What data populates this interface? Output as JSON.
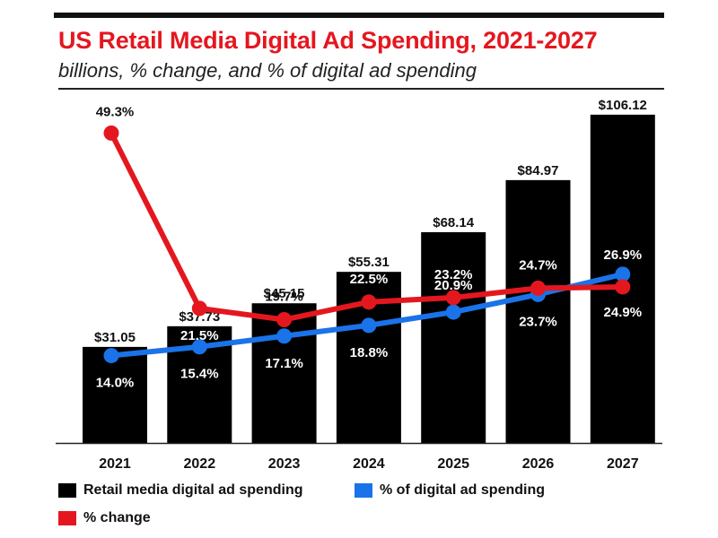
{
  "title": "US Retail Media Digital Ad Spending, 2021-2027",
  "subtitle": "billions, % change, and % of digital ad spending",
  "colors": {
    "bar": "#000000",
    "pct_change": "#e4171f",
    "pct_digital": "#1a73e8",
    "title": "#e4171f"
  },
  "legend": {
    "bar_label": "Retail media digital ad spending",
    "pct_digital_label": "% of digital ad spending",
    "pct_change_label": "% change"
  },
  "chart_data": {
    "type": "bar",
    "categories": [
      "2021",
      "2022",
      "2023",
      "2024",
      "2025",
      "2026",
      "2027"
    ],
    "series": [
      {
        "name": "Retail media digital ad spending",
        "type": "bar",
        "values": [
          31.05,
          37.73,
          45.15,
          55.31,
          68.14,
          84.97,
          106.12
        ],
        "labels": [
          "$31.05",
          "$37.73",
          "$45.15",
          "$55.31",
          "$68.14",
          "$84.97",
          "$106.12"
        ]
      },
      {
        "name": "% change",
        "type": "line",
        "values": [
          49.3,
          21.5,
          19.7,
          22.5,
          23.2,
          24.7,
          24.9
        ],
        "labels": [
          "49.3%",
          "21.5%",
          "19.7%",
          "22.5%",
          "23.2%",
          "24.7%",
          "24.9%"
        ]
      },
      {
        "name": "% of digital ad spending",
        "type": "line",
        "values": [
          14.0,
          15.4,
          17.1,
          18.8,
          20.9,
          23.7,
          26.9
        ],
        "labels": [
          "14.0%",
          "15.4%",
          "17.1%",
          "18.8%",
          "20.9%",
          "23.7%",
          "26.9%"
        ]
      }
    ],
    "xlabel": "",
    "ylabel": "",
    "grid": false,
    "legend_position": "bottom"
  }
}
